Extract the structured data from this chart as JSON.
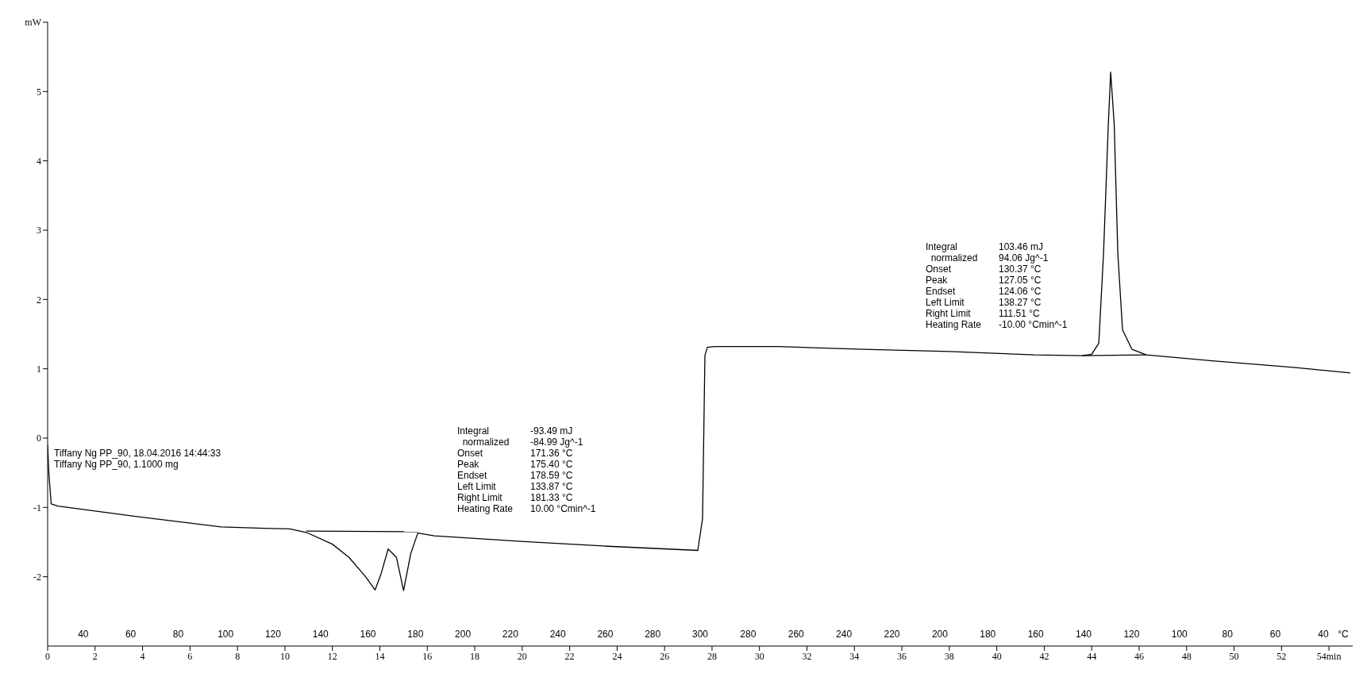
{
  "chart_data": {
    "type": "line",
    "line_style": "solid",
    "marker": "none",
    "xlim": [
      0,
      55
    ],
    "ylim": [
      -3,
      6
    ],
    "xticks": [
      0,
      2,
      4,
      6,
      8,
      10,
      12,
      14,
      16,
      18,
      20,
      22,
      24,
      26,
      28,
      30,
      32,
      34,
      36,
      38,
      40,
      42,
      44,
      46,
      48,
      50,
      52,
      {
        "value": 54,
        "label": "54min"
      }
    ],
    "yticks": [
      -2,
      -1,
      0,
      1,
      2,
      3,
      4,
      5,
      {
        "value": 6,
        "label": "mW"
      }
    ],
    "series": [
      {
        "color": "#000000",
        "x": [
          0,
          0.05,
          0.15,
          0.43,
          3.7,
          7.3,
          9.1,
          10.2,
          10.9,
          12.0,
          12.7,
          13.4,
          13.8,
          14.05,
          14.35,
          14.7,
          15.0,
          15.3,
          15.6,
          16.3,
          19.95,
          23.6,
          27.4,
          27.6,
          27.7,
          27.8,
          28.1,
          30.8,
          34.4,
          38.0,
          41.6,
          43.6,
          44.0,
          44.3,
          44.5,
          44.7,
          44.8,
          44.95,
          45.1,
          45.3,
          45.7,
          46.3,
          48.9,
          52.5,
          54.9
        ],
        "values": [
          -0.1,
          -0.5,
          -0.95,
          -0.98,
          -1.13,
          -1.28,
          -1.3,
          -1.31,
          -1.36,
          -1.53,
          -1.72,
          -2.0,
          -2.19,
          -1.96,
          -1.6,
          -1.72,
          -2.2,
          -1.67,
          -1.37,
          -1.41,
          -1.49,
          -1.56,
          -1.62,
          -1.16,
          1.19,
          1.31,
          1.32,
          1.32,
          1.28,
          1.25,
          1.2,
          1.19,
          1.21,
          1.37,
          2.67,
          4.52,
          5.28,
          4.52,
          2.67,
          1.56,
          1.28,
          1.2,
          1.12,
          1.02,
          0.94
        ]
      },
      {
        "color": "#000000",
        "x": [
          10.9,
          15.6
        ],
        "values": [
          -1.34,
          -1.35
        ]
      },
      {
        "color": "#000000",
        "x": [
          43.6,
          46.3
        ],
        "values": [
          1.19,
          1.2
        ]
      }
    ],
    "annotations": [
      "Tiffany Ng PP_90, 18.04.2016 14:44:33\nTiffany Ng PP_90, 1.1000 mg",
      "Integral\t-93.49 mJ\n  normalized\t-84.99 Jg^-1\nOnset\t171.36 °C\nPeak\t175.40 °C\nEndset\t178.59 °C\nLeft Limit\t133.87 °C\nRight Limit\t181.33 °C\nHeating Rate\t10.00 °Cmin^-1",
      "Integral\t103.46 mJ\n  normalized\t94.06 Jg^-1\nOnset\t130.37 °C\nPeak\t127.05 °C\nEndset\t124.06 °C\nLeft Limit\t138.27 °C\nRight Limit\t111.51 °C\nHeating Rate\t-10.00 °Cmin^-1",
      "40",
      "60",
      "80",
      "100",
      "120",
      "140",
      "160",
      "180",
      "200",
      "220",
      "240",
      "260",
      "280",
      "300",
      "280",
      "260",
      "240",
      "220",
      "200",
      "180",
      "160",
      "140",
      "120",
      "100",
      "80",
      "60",
      "40",
      "°C"
    ]
  }
}
